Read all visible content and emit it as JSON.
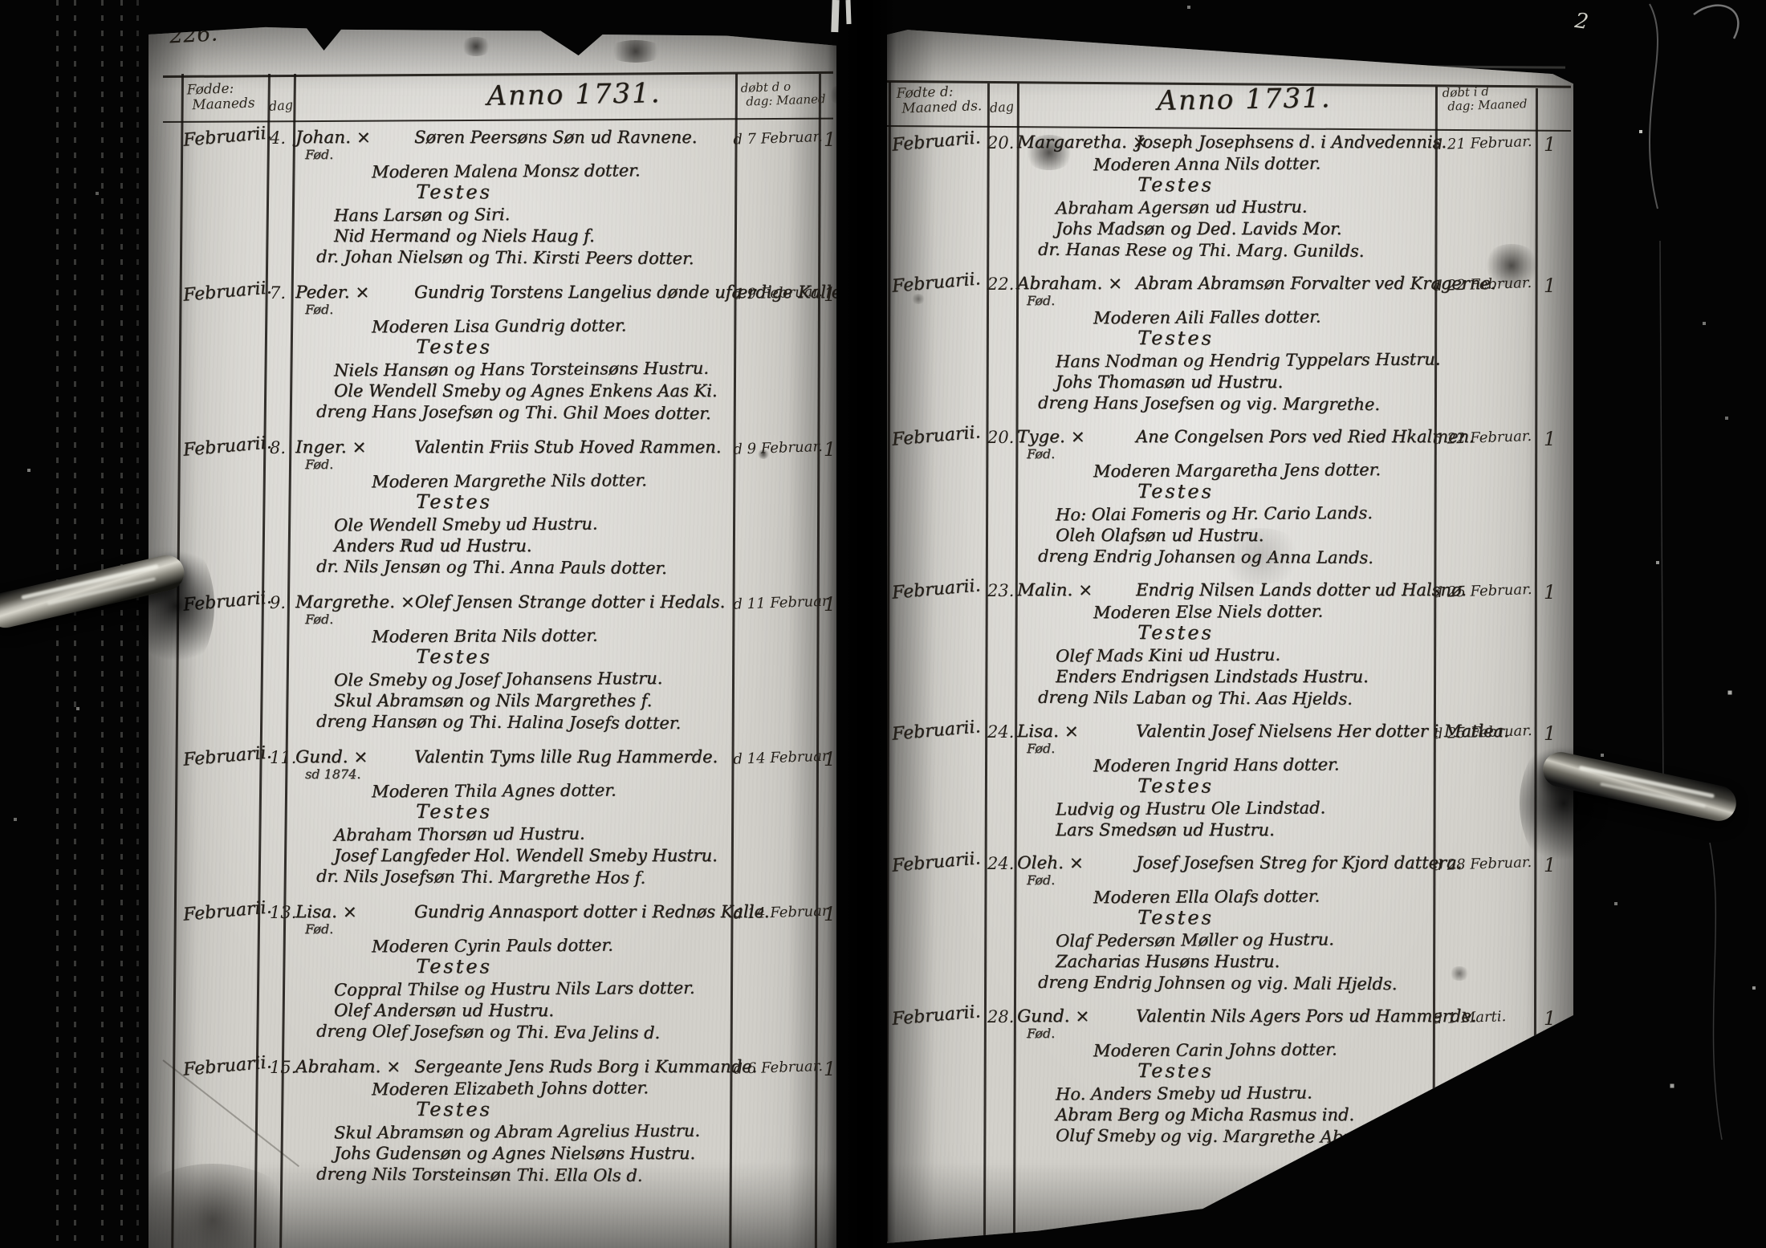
{
  "scan": {
    "left_page_number": "226.",
    "right_corner_mark": "2",
    "ink_color": "#241f19",
    "paper_color": "#d3d1cb",
    "cross_symbol": "×"
  },
  "left_page": {
    "page_number": "226.",
    "columns": {
      "month_header_line1": "Fødde:",
      "month_header_line2": "Maaneds",
      "day_header": "dag",
      "title": "Anno 1731.",
      "baptized_header_line1": "døbt d o",
      "baptized_header_line2": "dag: Maaned"
    },
    "entries": [
      {
        "month": "Februarii.",
        "day": "4.",
        "name": "Johan.",
        "cross": "×",
        "name_sub": "Fød.",
        "lines": [
          "Søren Peersøns Søn ud Ravnene.",
          "Moderen Malena Monsz dotter.",
          "Testes",
          "Hans Larsøn og Siri.",
          "Nid Hermand og Niels Haug f.",
          "dr. Johan Nielsøn og Thi. Kirsti Peers dotter."
        ],
        "baptized": "d 7 Februar.",
        "mark": "1"
      },
      {
        "month": "Februarii.",
        "day": "7.",
        "name": "Peder.",
        "cross": "×",
        "name_sub": "Fød.",
        "lines": [
          "Gundrig Torstens Langelius dønde ufærdige Kalle.",
          "Moderen Lisa Gundrig dotter.",
          "Testes",
          "Niels Hansøn og Hans Torsteinsøns Hustru.",
          "Ole Wendell Smeby og Agnes Enkens Aas Ki.",
          "dreng Hans Josefsøn og Thi. Ghil Moes dotter."
        ],
        "baptized": "d 9 Februar.",
        "mark": "1"
      },
      {
        "month": "Februarii.",
        "day": "8.",
        "name": "Inger.",
        "cross": "×",
        "name_sub": "Fød.",
        "lines": [
          "Valentin Friis Stub Hoved Rammen.",
          "Moderen Margrethe Nils dotter.",
          "Testes",
          "Ole Wendell Smeby ud Hustru.",
          "Anders Rud ud Hustru.",
          "dr. Nils Jensøn og Thi. Anna Pauls dotter."
        ],
        "baptized": "d 9 Februar.",
        "mark": "1"
      },
      {
        "month": "Februarii.",
        "day": "9.",
        "name": "Margrethe.",
        "cross": "×",
        "name_sub": "Fød.",
        "lines": [
          "Olef Jensen Strange dotter i Hedals.",
          "Moderen Brita Nils dotter.",
          "Testes",
          "Ole Smeby og Josef Johansens Hustru.",
          "Skul Abramsøn og Nils Margrethes f.",
          "dreng Hansøn og Thi. Halina Josefs dotter."
        ],
        "baptized": "d 11 Februar.",
        "mark": "1"
      },
      {
        "month": "Februarii.",
        "day": "11.",
        "name": "Gund.",
        "cross": "×",
        "name_sub": "sd 1874.",
        "lines": [
          "Valentin Tyms lille Rug Hammerde.",
          "Moderen Thila Agnes dotter.",
          "Testes",
          "Abraham Thorsøn ud Hustru.",
          "Josef Langfeder Hol. Wendell Smeby Hustru.",
          "dr. Nils Josefsøn Thi. Margrethe Hos f."
        ],
        "baptized": "d 14 Februar.",
        "mark": "1"
      },
      {
        "month": "Februarii.",
        "day": "13.",
        "name": "Lisa.",
        "cross": "×",
        "name_sub": "Fød.",
        "lines": [
          "Gundrig Annasport dotter i Rednøs Kalle.",
          "Moderen Cyrin Pauls dotter.",
          "Testes",
          "Coppral Thilse og Hustru Nils Lars dotter.",
          "Olef Andersøn ud Hustru.",
          "dreng Olef Josefsøn og Thi. Eva Jelins d."
        ],
        "baptized": "d 14 Februar.",
        "mark": "1"
      },
      {
        "month": "Februarii.",
        "day": "15.",
        "name": "Abraham.",
        "cross": "×",
        "name_sub": "",
        "lines": [
          "Sergeante Jens Ruds Borg i Kummande.",
          "Moderen Elizabeth Johns dotter.",
          "Testes",
          "Skul Abramsøn og Abram Agrelius Hustru.",
          "Johs Gudensøn og Agnes Nielsøns Hustru.",
          "dreng Nils Torsteinsøn Thi. Ella Ols d."
        ],
        "baptized": "d 6 Februar.",
        "mark": "1"
      }
    ]
  },
  "right_page": {
    "columns": {
      "month_header_line1": "Fødte d:",
      "month_header_line2": "Maaned ds.",
      "day_header": "dag",
      "title": "Anno 1731.",
      "baptized_header_line1": "døbt i d",
      "baptized_header_line2": "dag: Maaned"
    },
    "entries": [
      {
        "month": "Februarii.",
        "day": "20.",
        "name": "Margaretha.",
        "cross": "×",
        "name_sub": "",
        "lines": [
          "Joseph Josephsens d. i Andvedennis.",
          "Moderen Anna Nils dotter.",
          "Testes",
          "Abraham Agersøn ud Hustru.",
          "Johs Madsøn og Ded. Lavids Mor.",
          "dr. Hanas Rese og Thi. Marg. Gunilds."
        ],
        "baptized": "d 21 Februar.",
        "mark": "1"
      },
      {
        "month": "Februarii.",
        "day": "22.",
        "name": "Abraham.",
        "cross": "×",
        "name_sub": "Fød.",
        "lines": [
          "Abram Abramsøn Forvalter ved Kragerne.",
          "Moderen Aili Falles dotter.",
          "Testes",
          "Hans Nodman og Hendrig Typpelars Hustru.",
          "Johs Thomasøn ud Hustru.",
          "dreng Hans Josefsen og vig. Margrethe."
        ],
        "baptized": "d 22 Februar.",
        "mark": "1"
      },
      {
        "month": "Februarii.",
        "day": "20.",
        "name": "Tyge.",
        "cross": "×",
        "name_sub": "Fød.",
        "lines": [
          "Ane Congelsen Pors ved Ried Hkalmen.",
          "Moderen Margaretha Jens dotter.",
          "Testes",
          "Ho: Olai Fomeris og Hr. Cario Lands.",
          "Oleh Olafsøn ud Hustru.",
          "dreng Endrig Johansen og Anna Lands."
        ],
        "baptized": "d 22 Februar.",
        "mark": "1"
      },
      {
        "month": "Februarii.",
        "day": "23.",
        "name": "Malin.",
        "cross": "×",
        "name_sub": "",
        "lines": [
          "Endrig Nilsen Lands dotter ud Halsnø.",
          "Moderen Else Niels dotter.",
          "Testes",
          "Olef Mads Kini ud Hustru.",
          "Enders Endrigsen Lindstads Hustru.",
          "dreng Nils Laban og Thi. Aas Hjelds."
        ],
        "baptized": "d 25 Februar.",
        "mark": "1"
      },
      {
        "month": "Februarii.",
        "day": "24.",
        "name": "Lisa.",
        "cross": "×",
        "name_sub": "Fød.",
        "lines": [
          "Valentin Josef Nielsens Her dotter i Matlea.",
          "Moderen Ingrid Hans dotter.",
          "Testes",
          "Ludvig og Hustru Ole Lindstad.",
          "Lars Smedsøn ud Hustru."
        ],
        "baptized": "d 25 Februar.",
        "mark": "1"
      },
      {
        "month": "Februarii.",
        "day": "24.",
        "name": "Oleh.",
        "cross": "×",
        "name_sub": "Fød.",
        "lines": [
          "Josef Josefsen Streg for Kjord dattera.",
          "Moderen Ella Olafs dotter.",
          "Testes",
          "Olaf Pedersøn Møller og Hustru.",
          "Zacharias Husøns Hustru.",
          "dreng Endrig Johnsen og vig. Mali Hjelds."
        ],
        "baptized": "d 28 Februar.",
        "mark": "1"
      },
      {
        "month": "Februarii.",
        "day": "28.",
        "name": "Gund.",
        "cross": "×",
        "name_sub": "Fød.",
        "lines": [
          "Valentin Nils Agers Pors ud Hammerde.",
          "Moderen Carin Johns dotter.",
          "Testes",
          "Ho. Anders Smeby ud Hustru.",
          "Abram Berg og Micha Rasmus ind.",
          "Oluf Smeby og vig. Margrethe Abrahams dotter."
        ],
        "baptized": "d 1 Marti.",
        "mark": "1"
      }
    ]
  }
}
